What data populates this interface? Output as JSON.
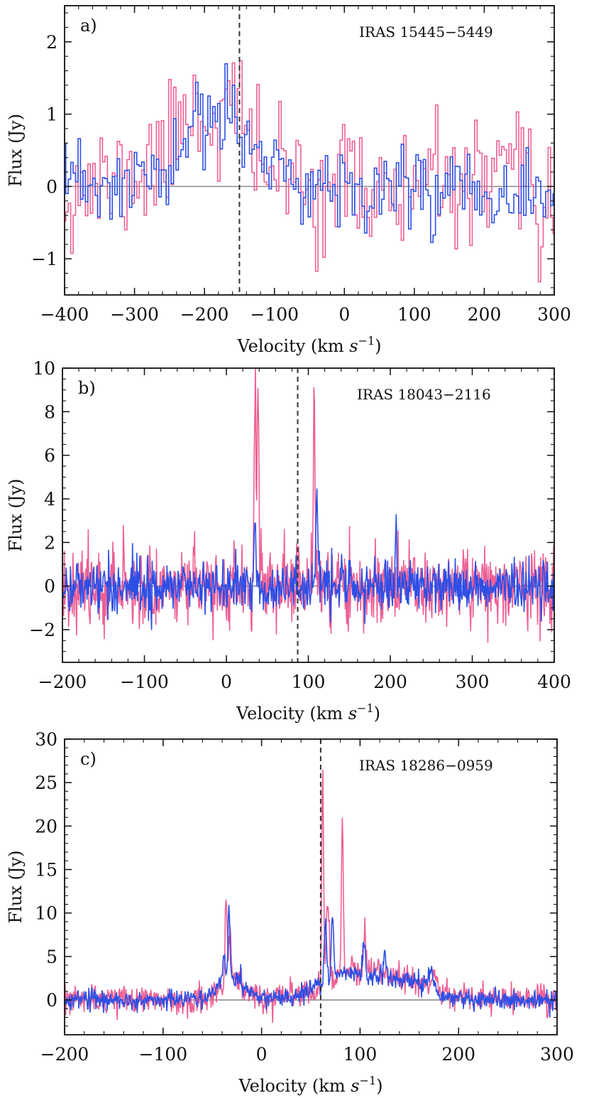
{
  "chart_data": [
    {
      "type": "line",
      "panel_label": "a)",
      "source_label": "IRAS 15445−5449",
      "xlabel_main": "Velocity (km ",
      "xlabel_unit": "s",
      "xlabel_exp": "−1",
      "xlabel_close": ")",
      "ylabel": "Flux (Jy)",
      "xlim": [
        -400,
        300
      ],
      "ylim": [
        -1.5,
        2.5
      ],
      "xticks": [
        -400,
        -300,
        -200,
        -100,
        0,
        100,
        200,
        300
      ],
      "yticks": [
        -1,
        0,
        1,
        2
      ],
      "xtick_labels": [
        "−400",
        "−300",
        "−200",
        "−100",
        "0",
        "100",
        "200",
        "300"
      ],
      "ytick_labels": [
        "−1",
        "0",
        "1",
        "2"
      ],
      "xminor_step": 20,
      "yminor_step": 0.2,
      "drawstyle": "steps",
      "systemic_velocity": -150,
      "baseline": 0,
      "x": {
        "start": -400,
        "step": 3.5
      },
      "series": [
        {
          "name": "pink",
          "color": "#ee5f95",
          "noise": 0.42,
          "seed": 11,
          "features": [
            {
              "center": -190,
              "width": 55,
              "amp": 0.95
            },
            {
              "center": -222,
              "width": 8,
              "amp": 0.45
            },
            {
              "center": -158,
              "width": 7,
              "amp": 0.5
            },
            {
              "center": 80,
              "width": 3,
              "amp": -0.9
            },
            {
              "center": 280,
              "width": 3,
              "amp": -0.9
            }
          ]
        },
        {
          "name": "blue",
          "color": "#2d4fe6",
          "noise": 0.3,
          "seed": 23,
          "features": [
            {
              "center": -180,
              "width": 45,
              "amp": 0.85
            },
            {
              "center": -217,
              "width": 5,
              "amp": 0.5
            },
            {
              "center": -162,
              "width": 6,
              "amp": 0.45
            }
          ]
        }
      ]
    },
    {
      "type": "line",
      "panel_label": "b)",
      "source_label": "IRAS 18043−2116",
      "xlabel_main": "Velocity (km ",
      "xlabel_unit": "s",
      "xlabel_exp": "−1",
      "xlabel_close": ")",
      "ylabel": "Flux (Jy)",
      "xlim": [
        -200,
        400
      ],
      "ylim": [
        -3.5,
        10
      ],
      "xticks": [
        -200,
        -100,
        0,
        100,
        200,
        300,
        400
      ],
      "yticks": [
        -2,
        0,
        2,
        4,
        6,
        8,
        10
      ],
      "xtick_labels": [
        "−200",
        "−100",
        "0",
        "100",
        "200",
        "300",
        "400"
      ],
      "ytick_labels": [
        "−2",
        "0",
        "2",
        "4",
        "6",
        "8",
        "10"
      ],
      "xminor_step": 20,
      "yminor_step": 0.5,
      "drawstyle": "line",
      "systemic_velocity": 87,
      "baseline": 0,
      "x": {
        "start": -200,
        "step": 0.75
      },
      "series": [
        {
          "name": "pink",
          "color": "#ee5f95",
          "noise": 0.9,
          "seed": 37,
          "features": [
            {
              "center": 35,
              "width": 0.9,
              "amp": 8.2
            },
            {
              "center": 38.5,
              "width": 0.9,
              "amp": 7.8
            },
            {
              "center": 37,
              "width": 3,
              "amp": 2.4
            },
            {
              "center": 107,
              "width": 0.9,
              "amp": 7.2
            },
            {
              "center": 108,
              "width": 3,
              "amp": 1.2
            }
          ]
        },
        {
          "name": "blue",
          "color": "#2d4fe6",
          "noise": 0.6,
          "seed": 41,
          "features": [
            {
              "center": 35,
              "width": 0.9,
              "amp": 2.7
            },
            {
              "center": 110,
              "width": 0.9,
              "amp": 4.0
            },
            {
              "center": 112,
              "width": 2.5,
              "amp": 1.0
            },
            {
              "center": 207,
              "width": 0.9,
              "amp": 2.7
            }
          ]
        }
      ]
    },
    {
      "type": "line",
      "panel_label": "c)",
      "source_label": "IRAS 18286−0959",
      "xlabel_main": "Velocity (km ",
      "xlabel_unit": "s",
      "xlabel_exp": "−1",
      "xlabel_close": ")",
      "ylabel": "Flux (Jy)",
      "xlim": [
        -200,
        300
      ],
      "ylim": [
        -4,
        30
      ],
      "xticks": [
        -200,
        -100,
        0,
        100,
        200,
        300
      ],
      "yticks": [
        0,
        5,
        10,
        15,
        20,
        25,
        30
      ],
      "xtick_labels": [
        "−200",
        "−100",
        "0",
        "100",
        "200",
        "300"
      ],
      "ytick_labels": [
        "0",
        "5",
        "10",
        "15",
        "20",
        "25",
        "30"
      ],
      "xminor_step": 20,
      "yminor_step": 1,
      "drawstyle": "line",
      "systemic_velocity": 60,
      "baseline": 0,
      "x": {
        "start": -200,
        "step": 0.6
      },
      "series": [
        {
          "name": "pink",
          "color": "#ee5f95",
          "noise": 0.8,
          "seed": 53,
          "features": [
            {
              "center": -30,
              "width": 14,
              "amp": 2.2
            },
            {
              "center": -36,
              "width": 1,
              "amp": 10.5
            },
            {
              "center": -32,
              "width": 1,
              "amp": 6.5
            },
            {
              "center": 62,
              "width": 0.9,
              "amp": 24.5
            },
            {
              "center": 67,
              "width": 1.5,
              "amp": 9
            },
            {
              "center": 82,
              "width": 0.9,
              "amp": 18
            },
            {
              "center": 95,
              "width": 30,
              "amp": 3.2
            },
            {
              "center": 105,
              "width": 1.2,
              "amp": 4.5
            },
            {
              "center": 150,
              "width": 25,
              "amp": 1.8
            },
            {
              "center": 175,
              "width": 4,
              "amp": 1.8
            }
          ]
        },
        {
          "name": "blue",
          "color": "#2d4fe6",
          "noise": 0.55,
          "seed": 67,
          "features": [
            {
              "center": -32,
              "width": 14,
              "amp": 2.5
            },
            {
              "center": -33,
              "width": 1,
              "amp": 8.5
            },
            {
              "center": -38,
              "width": 1.2,
              "amp": 3.5
            },
            {
              "center": 90,
              "width": 30,
              "amp": 3.0
            },
            {
              "center": 65,
              "width": 1.2,
              "amp": 7
            },
            {
              "center": 72,
              "width": 1.2,
              "amp": 7.5
            },
            {
              "center": 104,
              "width": 1.2,
              "amp": 4
            },
            {
              "center": 125,
              "width": 1.2,
              "amp": 3.5
            },
            {
              "center": 150,
              "width": 22,
              "amp": 1.8
            },
            {
              "center": 172,
              "width": 3,
              "amp": 2.5
            }
          ]
        }
      ]
    }
  ]
}
